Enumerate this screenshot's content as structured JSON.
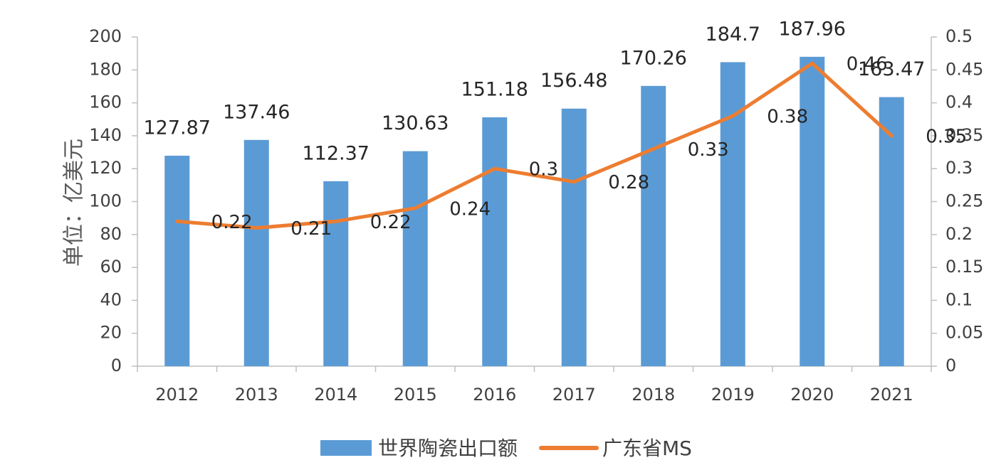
{
  "chart_data": {
    "type": "bar+line",
    "categories": [
      "2012",
      "2013",
      "2014",
      "2015",
      "2016",
      "2017",
      "2018",
      "2019",
      "2020",
      "2021"
    ],
    "series": [
      {
        "name": "世界陶瓷出口额",
        "type": "bar",
        "axis": "left",
        "values": [
          127.87,
          137.46,
          112.37,
          130.63,
          151.18,
          156.48,
          170.26,
          184.7,
          187.96,
          163.47
        ],
        "labels": [
          "127.87",
          "137.46",
          "112.37",
          "130.63",
          "151.18",
          "156.48",
          "170.26",
          "184.7",
          "187.96",
          "163.47"
        ],
        "color": "#5B9BD5"
      },
      {
        "name": "广东省MS",
        "type": "line",
        "axis": "right",
        "values": [
          0.22,
          0.21,
          0.22,
          0.24,
          0.3,
          0.28,
          0.33,
          0.38,
          0.46,
          0.35
        ],
        "labels": [
          "0.22",
          "0.21",
          "0.22",
          "0.24",
          "0.3",
          "0.28",
          "0.33",
          "0.38",
          "0.46",
          "0.35"
        ],
        "color": "#ED7D31"
      }
    ],
    "ylabel": "单位：亿美元",
    "ylim": [
      0,
      200
    ],
    "yticks": [
      "0",
      "20",
      "40",
      "60",
      "80",
      "100",
      "120",
      "140",
      "160",
      "180",
      "200"
    ],
    "y2lim": [
      0,
      0.5
    ],
    "y2ticks": [
      "0",
      "0.05",
      "0.1",
      "0.15",
      "0.2",
      "0.25",
      "0.3",
      "0.35",
      "0.4",
      "0.45",
      "0.5"
    ],
    "grid": false,
    "legend_position": "bottom"
  }
}
